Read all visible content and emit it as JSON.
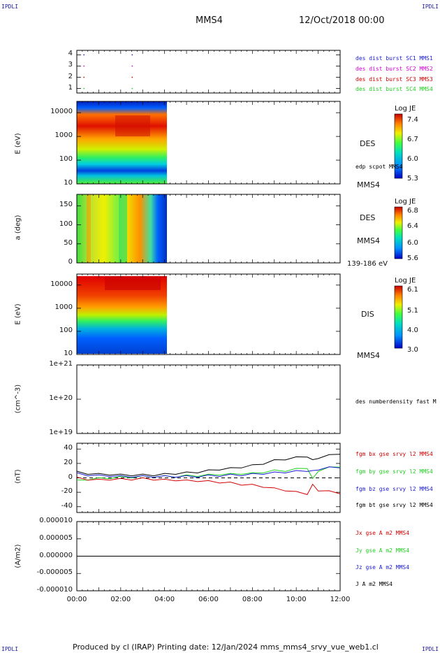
{
  "corner_labels": {
    "tl": "IPDLI",
    "tr": "IPDLI",
    "bl": "IPDLI",
    "br": "IPDLI"
  },
  "header": {
    "spacecraft": "MMS4",
    "datetime": "12/Oct/2018 00:00"
  },
  "footer": {
    "text": "Produced by cl (IRAP)   Printing date: 12/Jan/2024   mms_mms4_srvy_vue_web1.cl"
  },
  "colors": {
    "red": "#d40000",
    "magenta": "#d400d4",
    "blue": "#1a1ad4",
    "green": "#20d020",
    "black": "#000000"
  },
  "chart_data": [
    {
      "type": "scatter",
      "panel": "burst-intervals",
      "xlim": [
        "00:00",
        "12:00"
      ],
      "ylim": [
        0.6,
        4.4
      ],
      "yticks": [
        "1",
        "2",
        "3",
        "4"
      ],
      "series": [
        {
          "name": "des dist burst SC1 MMS1",
          "color": "#1a1ad4",
          "level": 4,
          "times": [
            "00:18",
            "02:30"
          ]
        },
        {
          "name": "des dist burst SC2 MMS2",
          "color": "#d400d4",
          "level": 3,
          "times": [
            "00:18",
            "02:30"
          ]
        },
        {
          "name": "des dist burst SC3 MMS3",
          "color": "#d40000",
          "level": 2,
          "times": [
            "00:18",
            "02:30"
          ]
        },
        {
          "name": "des dist burst SC4 MMS4",
          "color": "#20d020",
          "level": 1,
          "times": [
            "00:18",
            "02:30"
          ]
        }
      ]
    },
    {
      "type": "heatmap",
      "panel": "des-energy",
      "ylabel": "E (eV)",
      "yscale": "log",
      "yticks": [
        "10",
        "100",
        "1000",
        "10000"
      ],
      "data_end": "04:05",
      "instrument": "DES",
      "overlay_label": "edp scpot MMS4",
      "spacecraft": "MMS4",
      "colorbar": {
        "title": "Log JE",
        "ticks": [
          "7.4",
          "6.7",
          "6.0",
          "5.3"
        ],
        "range": [
          5.3,
          7.4
        ]
      }
    },
    {
      "type": "heatmap",
      "panel": "des-pitch-angle",
      "ylabel": "a (deg)",
      "yticks": [
        "0",
        "50",
        "100",
        "150"
      ],
      "ylim": [
        0,
        180
      ],
      "data_end": "04:05",
      "instrument": "DES",
      "spacecraft": "MMS4",
      "energy_range": "139-186 eV",
      "colorbar": {
        "title": "Log JE",
        "ticks": [
          "6.8",
          "6.4",
          "6.0",
          "5.6"
        ],
        "range": [
          5.6,
          6.8
        ]
      }
    },
    {
      "type": "heatmap",
      "panel": "dis-energy",
      "ylabel": "E (eV)",
      "yscale": "log",
      "yticks": [
        "10",
        "100",
        "1000",
        "10000"
      ],
      "data_end": "04:05",
      "instrument": "DIS",
      "spacecraft": "MMS4",
      "colorbar": {
        "title": "Log JE",
        "ticks": [
          "6.1",
          "5.1",
          "4.0",
          "3.0"
        ],
        "range": [
          3.0,
          6.1
        ]
      }
    },
    {
      "type": "line",
      "panel": "density",
      "ylabel": "(cm^-3)",
      "yscale": "log",
      "yticks": [
        "1e+21",
        "1e+20",
        "1e+19"
      ],
      "series": [
        {
          "name": "des numberdensity fast M",
          "color": "#000000",
          "values": []
        }
      ]
    },
    {
      "type": "line",
      "panel": "magnetic-field",
      "ylabel": "(nT)",
      "ylim": [
        -48,
        48
      ],
      "yticks": [
        "40",
        "20",
        "0",
        "-20",
        "-40"
      ],
      "x_hours": [
        0,
        0.5,
        1,
        1.5,
        2,
        2.5,
        3,
        3.5,
        4,
        4.5,
        5,
        5.5,
        6,
        6.5,
        7,
        7.5,
        8,
        8.5,
        9,
        9.5,
        10,
        10.5,
        10.75,
        11,
        11.5,
        12
      ],
      "series": [
        {
          "name": "fgm bx gse srvy l2 MMS4",
          "color": "#d40000",
          "values": [
            0,
            -2,
            -3,
            -2,
            -2,
            -2,
            -1,
            -2,
            -3,
            -3,
            -4,
            -4,
            -5,
            -6,
            -7,
            -9,
            -10,
            -12,
            -15,
            -17,
            -20,
            -22,
            -10,
            -17,
            -19,
            -21
          ]
        },
        {
          "name": "fgm by gse srvy l2 MMS4",
          "color": "#20d020",
          "values": [
            -4,
            -2,
            -1,
            0,
            1,
            1,
            2,
            2,
            2,
            2,
            3,
            3,
            4,
            5,
            5,
            6,
            6,
            8,
            10,
            10,
            12,
            14,
            -2,
            10,
            14,
            16
          ]
        },
        {
          "name": "fgm bz gse srvy l2 MMS4",
          "color": "#1a1ad4",
          "values": [
            6,
            4,
            3,
            3,
            2,
            2,
            2,
            2,
            2,
            2,
            2,
            2,
            3,
            3,
            4,
            4,
            5,
            6,
            7,
            8,
            9,
            10,
            9,
            12,
            14,
            15
          ]
        },
        {
          "name": "fgm bt gse srvy l2 MMS4",
          "color": "#000000",
          "values": [
            8,
            6,
            5,
            5,
            4,
            4,
            4,
            4,
            5,
            6,
            7,
            8,
            10,
            12,
            13,
            15,
            17,
            20,
            24,
            26,
            28,
            30,
            24,
            28,
            31,
            34
          ]
        }
      ]
    },
    {
      "type": "line",
      "panel": "current-density",
      "ylabel": "(A/m2)",
      "ylim": [
        -1e-05,
        1e-05
      ],
      "yticks": [
        "0.000010",
        "0.000005",
        "0.000000",
        "-0.000005",
        "-0.000010"
      ],
      "xticks": [
        "00:00",
        "02:00",
        "04:00",
        "06:00",
        "08:00",
        "10:00",
        "12:00"
      ],
      "series": [
        {
          "name": "Jx gse A m2 MMS4",
          "color": "#d40000",
          "values": []
        },
        {
          "name": "Jy gse A m2 MMS4",
          "color": "#20d020",
          "values": []
        },
        {
          "name": "Jz gse A m2 MMS4",
          "color": "#1a1ad4",
          "values": []
        },
        {
          "name": "J A m2 MMS4",
          "color": "#000000",
          "values": [
            0,
            0,
            0,
            0,
            0,
            0,
            0
          ]
        }
      ]
    }
  ]
}
